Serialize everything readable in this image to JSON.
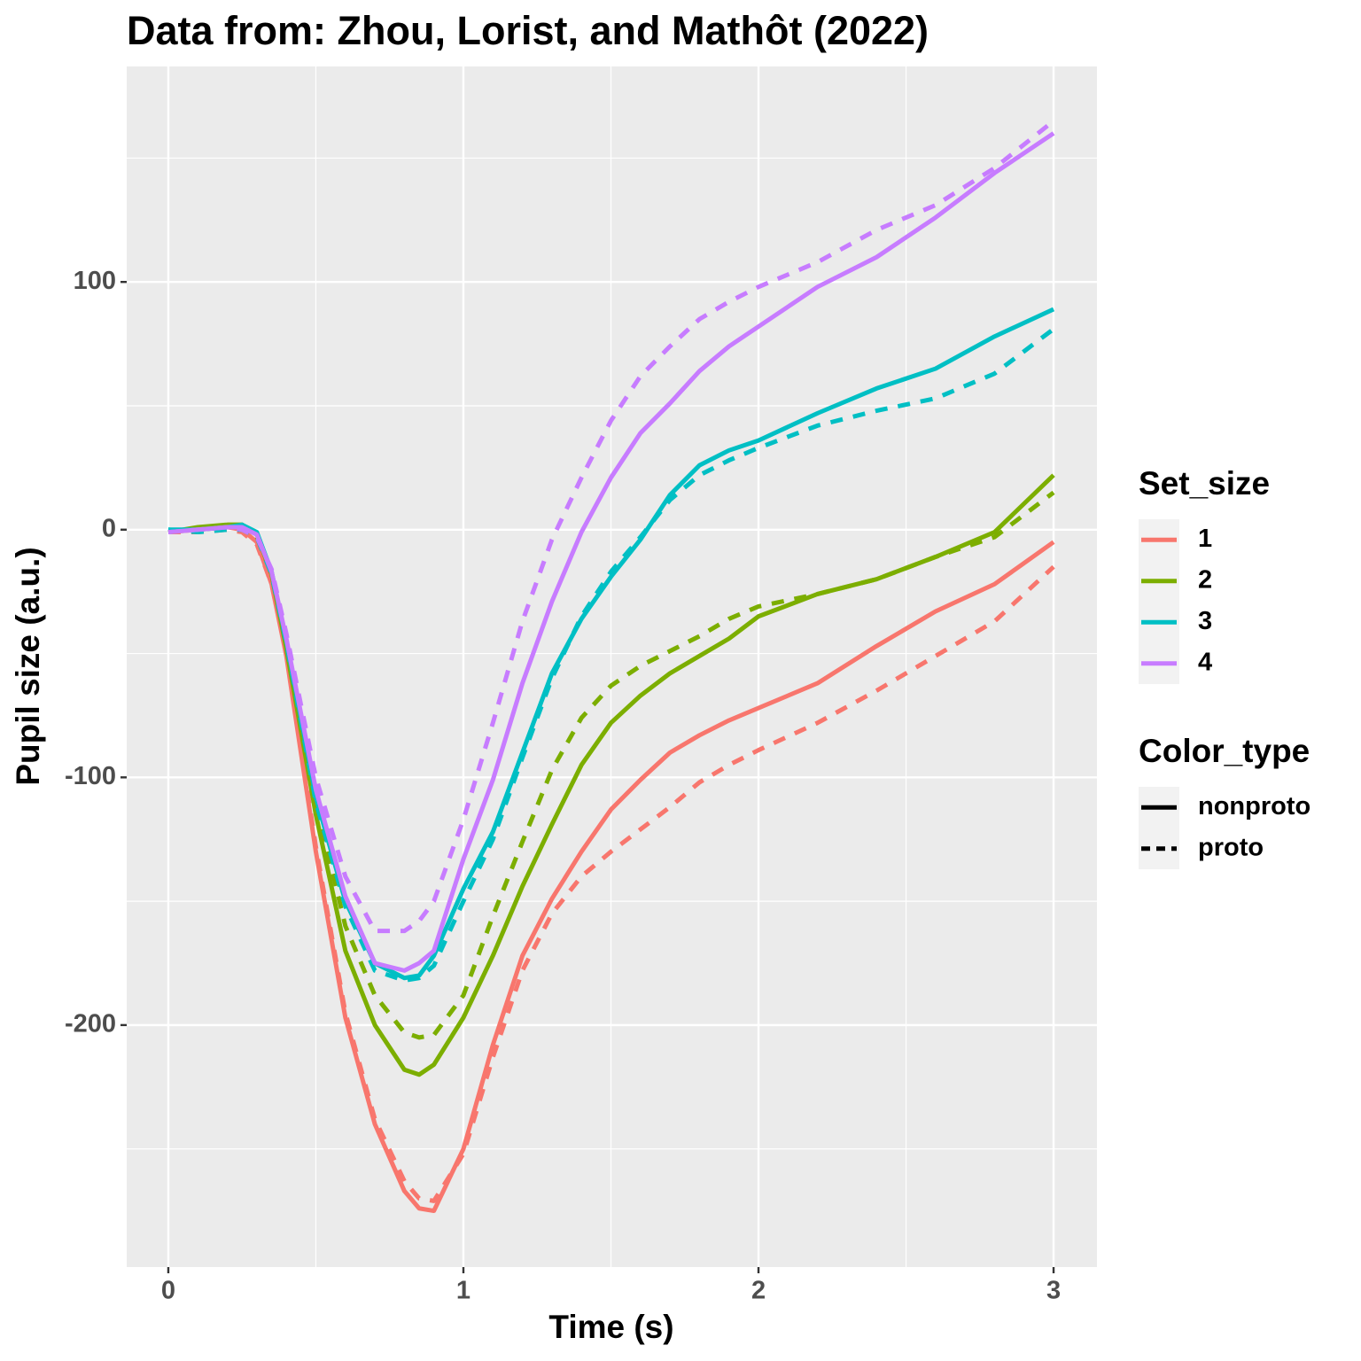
{
  "chart_data": {
    "type": "line",
    "title": "Data from: Zhou, Lorist, and Mathôt (2022)",
    "x_label": "Time (s)",
    "y_label": "Pupil size (a.u.)",
    "xlim": [
      -0.141,
      3.147
    ],
    "ylim": [
      -297.7,
      187
    ],
    "xticks": [
      0,
      1,
      2,
      3
    ],
    "yticks": [
      -200,
      -100,
      0,
      100
    ],
    "x_minor_ticks": [
      0.5,
      1.5,
      2.5
    ],
    "y_minor_ticks": [
      -250,
      -150,
      -50,
      50,
      150
    ],
    "grid": true,
    "legend": [
      {
        "title": "Set_size",
        "entries": [
          {
            "label": "1",
            "color": "#F8766D"
          },
          {
            "label": "2",
            "color": "#7CAE00"
          },
          {
            "label": "3",
            "color": "#00BFC4"
          },
          {
            "label": "4",
            "color": "#C77CFF"
          }
        ]
      },
      {
        "title": "Color_type",
        "entries": [
          {
            "label": "nonproto",
            "dash": "solid"
          },
          {
            "label": "proto",
            "dash": "dashed"
          }
        ]
      }
    ],
    "x": [
      0,
      0.1,
      0.2,
      0.25,
      0.3,
      0.35,
      0.4,
      0.5,
      0.6,
      0.7,
      0.8,
      0.85,
      0.9,
      1.0,
      1.1,
      1.2,
      1.3,
      1.4,
      1.5,
      1.6,
      1.7,
      1.8,
      1.9,
      2.0,
      2.2,
      2.4,
      2.6,
      2.8,
      3.0
    ],
    "series": [
      {
        "set_size": "1",
        "color_type": "nonproto",
        "color": "#F8766D",
        "dash": "solid",
        "values": [
          -1,
          0,
          1,
          0,
          -5,
          -22,
          -51,
          -130,
          -197,
          -240,
          -267,
          -274,
          -275,
          -250,
          -208,
          -172,
          -149,
          -130,
          -113,
          -101,
          -90,
          -83,
          -77,
          -72,
          -62,
          -47,
          -33,
          -22,
          -5
        ]
      },
      {
        "set_size": "1",
        "color_type": "proto",
        "color": "#F8766D",
        "dash": "dashed",
        "values": [
          -1,
          -1,
          0,
          -1,
          -6,
          -22,
          -50,
          -128,
          -195,
          -238,
          -263,
          -270,
          -271,
          -252,
          -213,
          -178,
          -155,
          -140,
          -130,
          -121,
          -112,
          -102,
          -95,
          -89,
          -78,
          -65,
          -51,
          -37,
          -15
        ]
      },
      {
        "set_size": "2",
        "color_type": "nonproto",
        "color": "#7CAE00",
        "dash": "solid",
        "values": [
          -1,
          1,
          2,
          2,
          -2,
          -18,
          -48,
          -115,
          -170,
          -200,
          -218,
          -220,
          -216,
          -197,
          -172,
          -144,
          -119,
          -95,
          -78,
          -67,
          -58,
          -51,
          -44,
          -35,
          -26,
          -20,
          -11,
          -1,
          22
        ]
      },
      {
        "set_size": "2",
        "color_type": "proto",
        "color": "#7CAE00",
        "dash": "dashed",
        "values": [
          -1,
          0,
          1,
          1,
          -3,
          -18,
          -47,
          -110,
          -160,
          -188,
          -203,
          -205,
          -204,
          -188,
          -156,
          -126,
          -97,
          -76,
          -63,
          -55,
          -49,
          -43,
          -36,
          -31,
          -26,
          -20,
          -11,
          -3,
          15
        ]
      },
      {
        "set_size": "3",
        "color_type": "nonproto",
        "color": "#00BFC4",
        "dash": "solid",
        "values": [
          0,
          0,
          1,
          2,
          -1,
          -17,
          -45,
          -108,
          -150,
          -175,
          -181,
          -180,
          -172,
          -145,
          -122,
          -90,
          -58,
          -36,
          -19,
          -4,
          14,
          26,
          32,
          36,
          47,
          57,
          65,
          78,
          89
        ]
      },
      {
        "set_size": "3",
        "color_type": "proto",
        "color": "#00BFC4",
        "dash": "dashed",
        "values": [
          0,
          -1,
          0,
          0,
          -3,
          -18,
          -46,
          -110,
          -152,
          -178,
          -182,
          -181,
          -176,
          -150,
          -125,
          -92,
          -60,
          -35,
          -17,
          -3,
          12,
          22,
          28,
          33,
          42,
          48,
          53,
          63,
          81
        ]
      },
      {
        "set_size": "4",
        "color_type": "nonproto",
        "color": "#C77CFF",
        "dash": "solid",
        "values": [
          -1,
          0,
          1,
          1,
          -2,
          -17,
          -44,
          -105,
          -148,
          -175,
          -178,
          -175,
          -170,
          -133,
          -101,
          -62,
          -29,
          -1,
          21,
          39,
          51,
          64,
          74,
          82,
          98,
          110,
          126,
          144,
          160
        ]
      },
      {
        "set_size": "4",
        "color_type": "proto",
        "color": "#C77CFF",
        "dash": "dashed",
        "values": [
          -1,
          0,
          1,
          0,
          -3,
          -16,
          -42,
          -100,
          -140,
          -162,
          -162,
          -158,
          -150,
          -117,
          -78,
          -37,
          -4,
          21,
          44,
          62,
          74,
          85,
          92,
          98,
          108,
          121,
          131,
          146,
          165
        ]
      }
    ]
  }
}
